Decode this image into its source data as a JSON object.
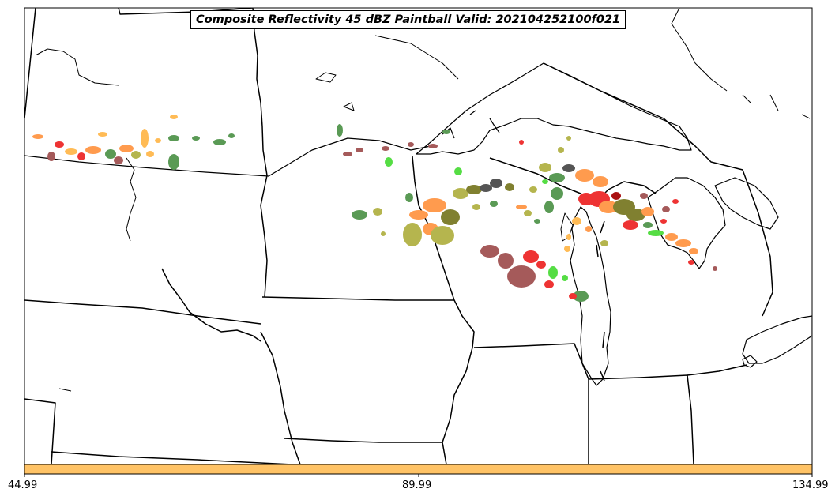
{
  "title": "Composite Reflectivity 45 dBZ Paintball Valid: 202104252100f021",
  "colorbar": {
    "color": "#ffc366",
    "ticks": [
      "44.99",
      "89.99",
      "134.99"
    ]
  },
  "colors": {
    "orange": "#ff9b4e",
    "light_orange": "#ffbb55",
    "red": "#ee3333",
    "brown": "#a55a5a",
    "dark_green": "#5a9a55",
    "bright_green": "#55dd44",
    "olive": "#b5b54e",
    "dark_olive": "#808030",
    "dark_gray": "#555555",
    "dark_red": "#aa1111"
  },
  "map_features": [
    "state-borders",
    "coastlines",
    "great-lakes"
  ]
}
